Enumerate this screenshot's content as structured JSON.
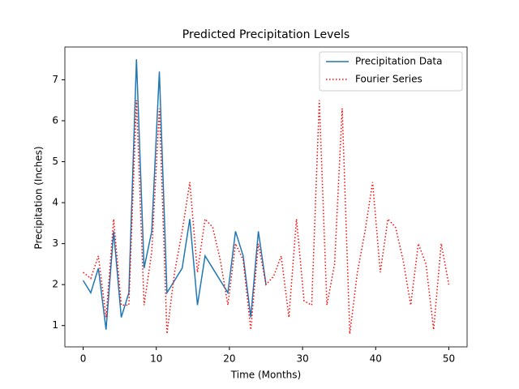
{
  "chart_data": {
    "type": "line",
    "title": "Predicted Precipitation Levels",
    "x_label": "Time (Months)",
    "y_label": "Precipitation (Inches)",
    "xlim": [
      -2.5,
      52.5
    ],
    "ylim": [
      0.48,
      7.8
    ],
    "xticks": [
      0,
      10,
      20,
      30,
      40,
      50
    ],
    "yticks": [
      1,
      2,
      3,
      4,
      5,
      6,
      7
    ],
    "legend": "upper right",
    "series": [
      {
        "name": "Precipitation Data",
        "color": "#1f77b4",
        "style": "solid",
        "x": [
          0,
          1.04,
          2.08,
          3.13,
          4.17,
          5.21,
          6.25,
          7.29,
          8.33,
          9.38,
          10.42,
          11.46,
          12.5,
          13.54,
          14.58,
          15.63,
          16.67,
          17.71,
          18.75,
          19.79,
          20.83,
          21.88,
          22.92,
          23.96,
          25.0
        ],
        "values": [
          2.1,
          1.8,
          2.4,
          0.9,
          3.3,
          1.2,
          1.8,
          7.5,
          2.4,
          3.3,
          7.2,
          1.8,
          2.1,
          2.4,
          3.6,
          1.5,
          2.7,
          2.4,
          2.1,
          1.8,
          3.3,
          2.7,
          1.2,
          3.3,
          2.0
        ]
      },
      {
        "name": "Fourier Series",
        "color": "#ff0000",
        "style": "dotted",
        "x": [
          0,
          1.04,
          2.08,
          3.13,
          4.17,
          5.21,
          6.25,
          7.29,
          8.33,
          9.38,
          10.42,
          11.46,
          12.5,
          13.54,
          14.58,
          15.63,
          16.67,
          17.71,
          18.75,
          19.79,
          20.83,
          21.88,
          22.92,
          23.96,
          25.0,
          26.04,
          27.08,
          28.13,
          29.17,
          30.21,
          31.25,
          32.29,
          33.33,
          34.38,
          35.42,
          36.46,
          37.5,
          38.54,
          39.58,
          40.63,
          41.67,
          42.71,
          43.75,
          44.79,
          45.83,
          46.88,
          47.92,
          48.96,
          50
        ],
        "values": [
          2.3,
          2.15,
          2.7,
          1.2,
          3.6,
          1.5,
          1.5,
          6.5,
          1.5,
          2.8,
          6.3,
          0.8,
          2.3,
          3.3,
          4.5,
          2.3,
          3.6,
          3.4,
          2.6,
          1.5,
          3.0,
          2.6,
          0.9,
          3.0,
          2.0,
          2.2,
          2.7,
          1.2,
          3.6,
          1.6,
          1.5,
          6.5,
          1.5,
          2.5,
          6.3,
          0.8,
          2.3,
          3.3,
          4.5,
          2.3,
          3.6,
          3.4,
          2.6,
          1.5,
          3.0,
          2.5,
          0.9,
          3.0,
          2.0
        ]
      }
    ]
  }
}
